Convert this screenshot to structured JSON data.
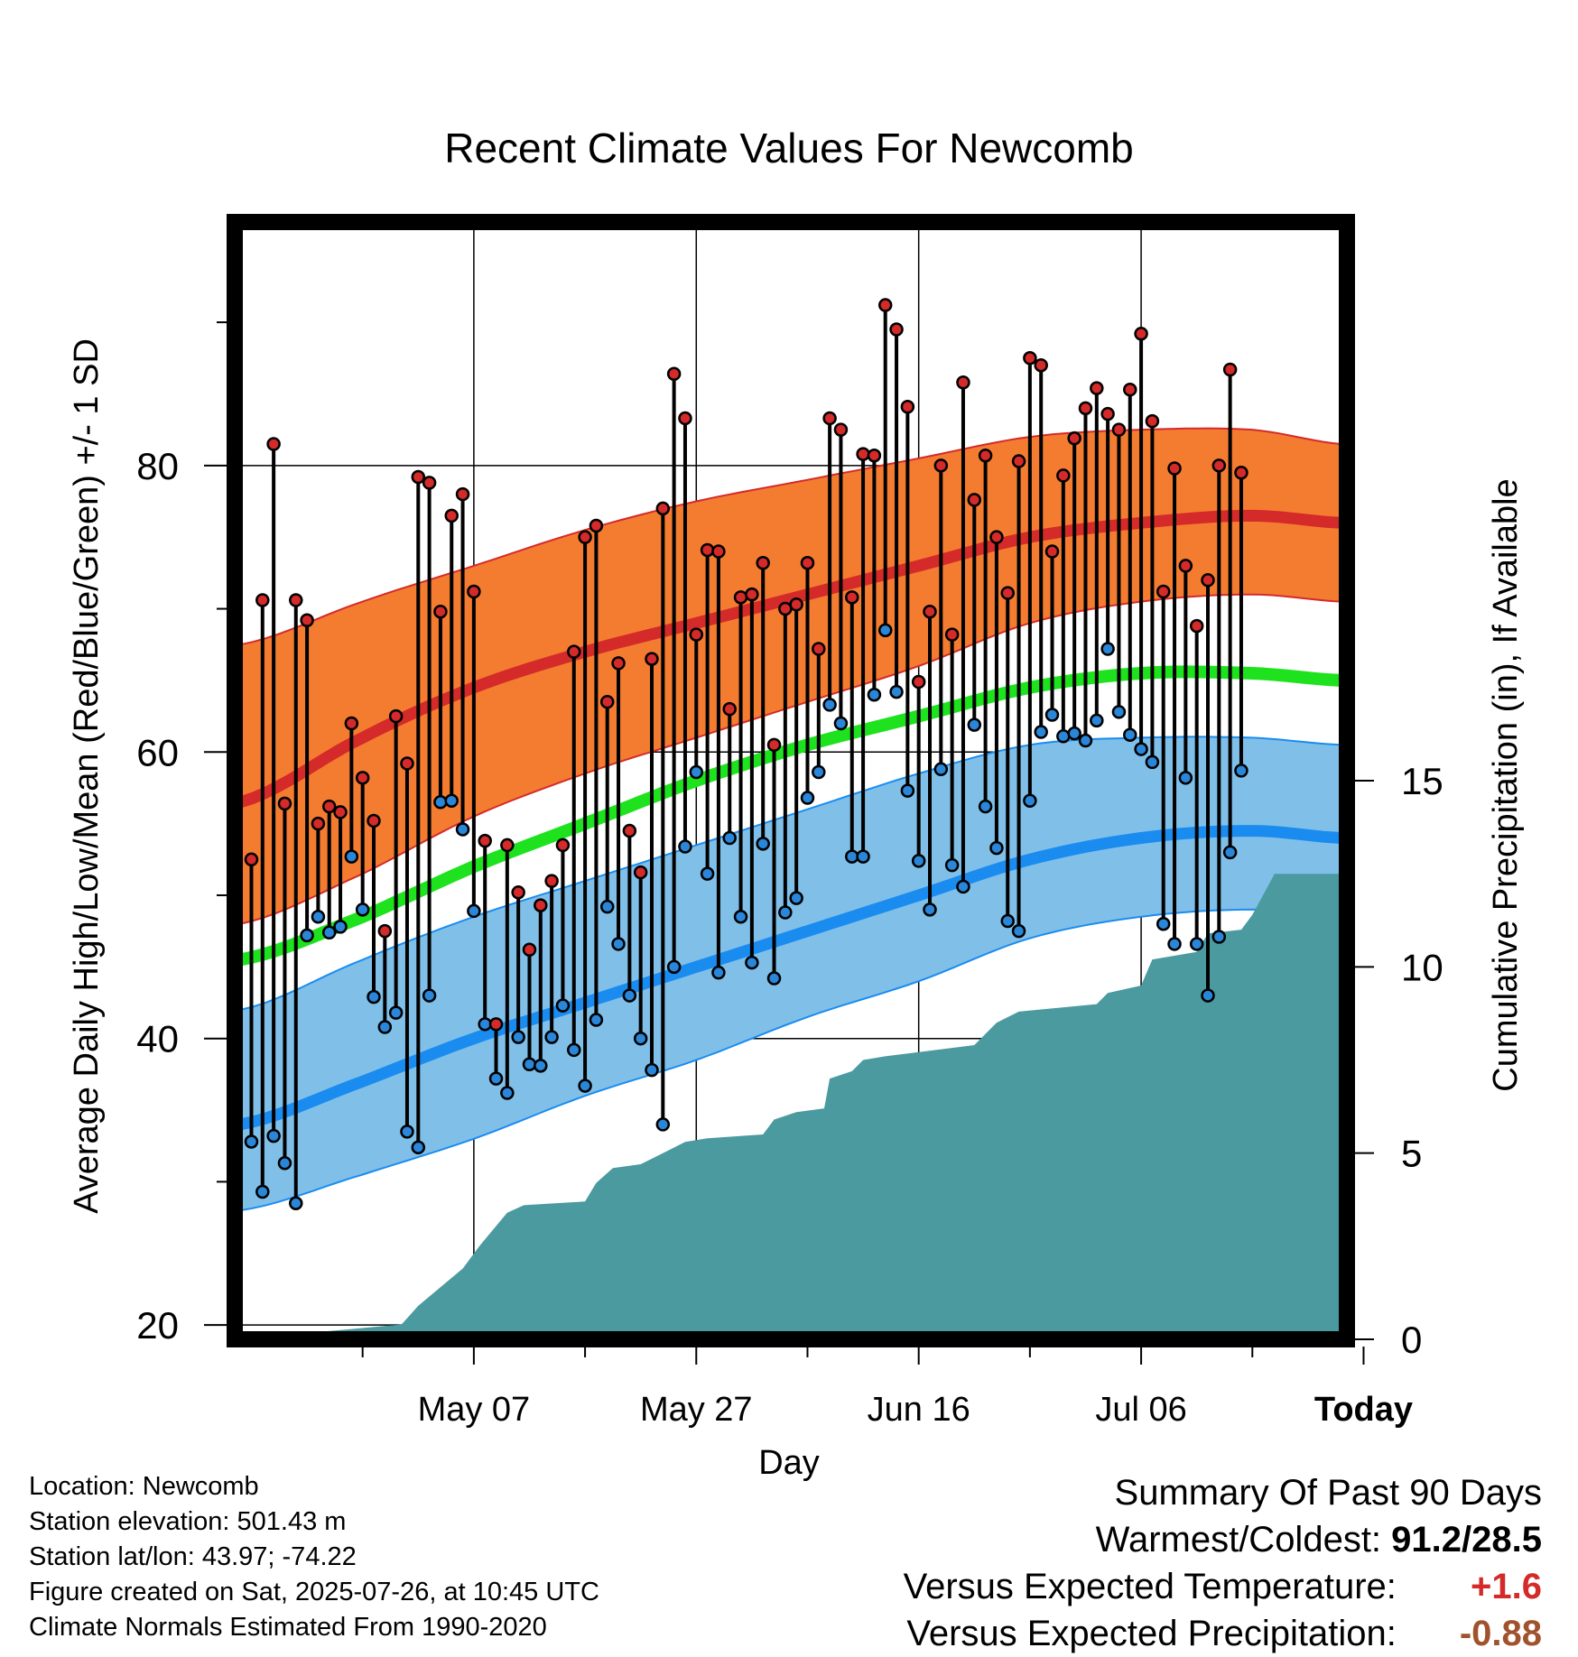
{
  "chart_data": {
    "type": "line",
    "title": "Recent Climate Values For Newcomb",
    "xlabel": "Day",
    "ylabel": "Average Daily High/Low/Mean (Red/Blue/Green) +/- 1 SD",
    "y2label": "Cumulative Precipitation (in), If Available",
    "ylim": [
      19,
      97
    ],
    "y2lim": [
      0,
      30
    ],
    "xlim": [
      -11.5,
      88.5
    ],
    "x_ticks": [
      {
        "day": 10,
        "label": "May 07"
      },
      {
        "day": 30,
        "label": "May 27"
      },
      {
        "day": 50,
        "label": "Jun 16"
      },
      {
        "day": 70,
        "label": "Jul 06"
      },
      {
        "day": 90,
        "label": "Today"
      }
    ],
    "y_ticks": [
      20,
      40,
      60,
      80
    ],
    "y2_ticks": [
      0,
      5,
      10,
      15
    ],
    "today_marker": "90\nDays",
    "grid": true,
    "colors": {
      "high_band": "#f47c30",
      "high_line": "#d42a2a",
      "low_band": "#80c0e8",
      "low_line": "#1a8cf0",
      "mean_line": "#1ee21e",
      "precip": "#4a9aa0",
      "high_dot": "#d42a2a",
      "low_dot": "#2a86d8"
    },
    "normals": {
      "x": [
        -11,
        0,
        10,
        20,
        30,
        40,
        50,
        60,
        70,
        80,
        88
      ],
      "high_mean": [
        56.5,
        61,
        64.5,
        67,
        69,
        71,
        73,
        75,
        76,
        76.5,
        76
      ],
      "high_upper": [
        67.5,
        70.5,
        73,
        75.5,
        77.5,
        79,
        80.5,
        82,
        82.5,
        82.5,
        81.5
      ],
      "high_lower": [
        48,
        51.5,
        55.5,
        58.5,
        61,
        63.5,
        66,
        69,
        70.5,
        71,
        70.5
      ],
      "mean": [
        45.5,
        48.5,
        52,
        55,
        58,
        60.5,
        62.5,
        64.5,
        65.5,
        65.5,
        65
      ],
      "low_mean": [
        34,
        37,
        40,
        42.5,
        45,
        47.5,
        50,
        52.5,
        54,
        54.5,
        54
      ],
      "low_upper": [
        42,
        45.5,
        48.5,
        51,
        53.5,
        56,
        58.5,
        60.5,
        61,
        61,
        60.5
      ],
      "low_lower": [
        28,
        30.5,
        33,
        36,
        38.5,
        41.5,
        44,
        47,
        48.5,
        49,
        48.5
      ]
    },
    "highs": [
      52.5,
      70.6,
      81.5,
      56.4,
      70.6,
      69.2,
      55,
      56.2,
      55.8,
      62,
      58.2,
      55.2,
      47.5,
      62.5,
      59.2,
      79.2,
      78.8,
      69.8,
      76.5,
      78,
      71.2,
      53.8,
      41,
      53.5,
      50.2,
      46.2,
      49.3,
      51,
      53.5,
      67,
      75,
      75.8,
      63.5,
      66.2,
      54.5,
      51.6,
      66.5,
      77,
      86.4,
      83.3,
      68.2,
      74.1,
      74,
      63,
      70.8,
      71,
      73.2,
      60.5,
      70,
      70.3,
      73.2,
      67.2,
      83.3,
      82.5,
      70.8,
      80.8,
      80.7,
      91.2,
      89.5,
      84.1,
      64.9,
      69.8,
      80,
      68.2,
      85.8,
      77.6,
      80.7,
      75,
      71.1,
      80.3,
      87.5,
      87,
      74,
      79.3,
      81.9,
      84,
      85.4,
      83.6,
      82.5,
      85.3,
      89.2,
      83.1,
      71.2,
      79.8,
      73,
      68.8,
      72,
      80,
      86.7,
      79.5
    ],
    "lows": [
      32.8,
      29.3,
      33.2,
      31.3,
      28.5,
      47.2,
      48.5,
      47.4,
      47.8,
      52.7,
      49,
      42.9,
      40.8,
      41.8,
      33.5,
      32.4,
      43,
      56.5,
      56.6,
      54.6,
      48.9,
      41,
      37.2,
      36.2,
      40.1,
      38.2,
      38.1,
      40.1,
      42.3,
      39.2,
      36.7,
      41.3,
      49.2,
      46.6,
      43,
      40,
      37.8,
      34,
      45,
      53.4,
      58.6,
      51.5,
      44.6,
      54,
      48.5,
      45.3,
      53.6,
      44.2,
      48.8,
      49.8,
      56.8,
      58.6,
      63.3,
      62,
      52.7,
      52.7,
      64,
      68.5,
      64.2,
      57.3,
      52.4,
      49,
      58.8,
      52.1,
      50.6,
      61.9,
      56.2,
      53.3,
      48.2,
      47.5,
      56.6,
      61.4,
      62.6,
      61.1,
      61.3,
      60.8,
      62.2,
      67.2,
      62.8,
      61.2,
      60.2,
      59.3,
      48,
      46.6,
      58.2,
      46.6,
      43,
      47.1,
      53,
      58.7
    ],
    "precip_steps": [
      {
        "day": -11,
        "value": 0
      },
      {
        "day": 3.5,
        "value": 0.4
      },
      {
        "day": 5,
        "value": 0.9
      },
      {
        "day": 7,
        "value": 1.4
      },
      {
        "day": 9,
        "value": 1.9
      },
      {
        "day": 10.5,
        "value": 2.5
      },
      {
        "day": 13,
        "value": 3.4
      },
      {
        "day": 14.5,
        "value": 3.6
      },
      {
        "day": 20,
        "value": 3.7
      },
      {
        "day": 21,
        "value": 4.2
      },
      {
        "day": 22.5,
        "value": 4.6
      },
      {
        "day": 25,
        "value": 4.7
      },
      {
        "day": 27,
        "value": 5
      },
      {
        "day": 29,
        "value": 5.3
      },
      {
        "day": 31,
        "value": 5.4
      },
      {
        "day": 36,
        "value": 5.5
      },
      {
        "day": 37,
        "value": 5.9
      },
      {
        "day": 39,
        "value": 6.1
      },
      {
        "day": 41.5,
        "value": 6.2
      },
      {
        "day": 42,
        "value": 7
      },
      {
        "day": 44,
        "value": 7.2
      },
      {
        "day": 45,
        "value": 7.5
      },
      {
        "day": 47,
        "value": 7.6
      },
      {
        "day": 55,
        "value": 7.9
      },
      {
        "day": 57,
        "value": 8.5
      },
      {
        "day": 59,
        "value": 8.8
      },
      {
        "day": 66,
        "value": 9
      },
      {
        "day": 67,
        "value": 9.3
      },
      {
        "day": 70,
        "value": 9.5
      },
      {
        "day": 71,
        "value": 10.2
      },
      {
        "day": 75,
        "value": 10.4
      },
      {
        "day": 76,
        "value": 10.9
      },
      {
        "day": 79,
        "value": 11
      },
      {
        "day": 80,
        "value": 11.4
      },
      {
        "day": 82,
        "value": 12.5
      },
      {
        "day": 88.5,
        "value": 12.5
      }
    ]
  },
  "info": {
    "location": "Location: Newcomb",
    "elevation": "Station elevation: 501.43 m",
    "latlon": "Station lat/lon: 43.97; -74.22",
    "created": "Figure created on Sat, 2025-07-26, at 10:45 UTC",
    "normals": "Climate Normals Estimated From 1990-2020"
  },
  "summary": {
    "title": "Summary Of Past 90 Days",
    "warm_cold_label": "Warmest/Coldest:",
    "warm_cold_value": "91.2/28.5",
    "temp_label": "Versus Expected Temperature:",
    "temp_value": "+1.6",
    "temp_color": "#d42a2a",
    "precip_label": "Versus Expected Precipitation:",
    "precip_value": "-0.88",
    "precip_color": "#a0522d"
  }
}
